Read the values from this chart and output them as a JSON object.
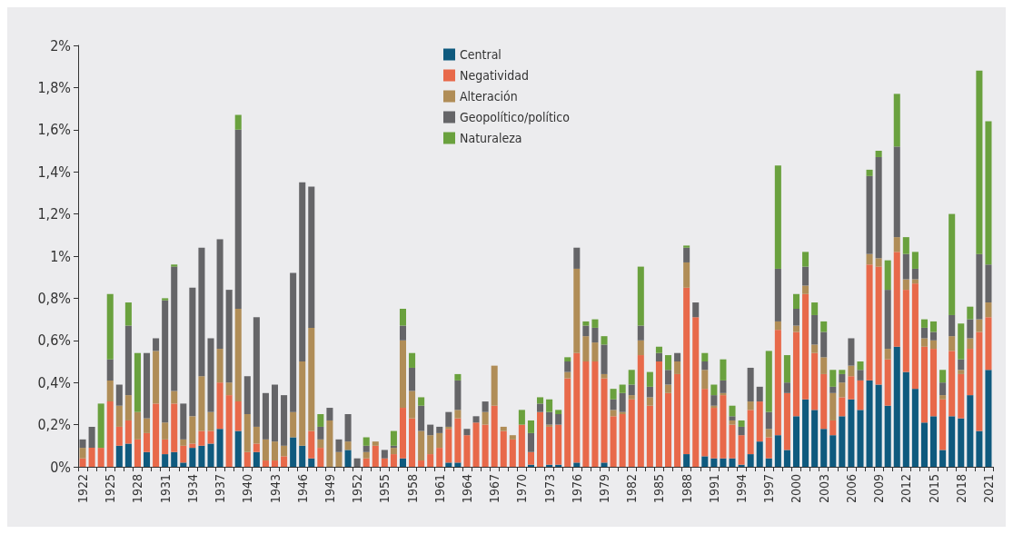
{
  "chart_data": {
    "type": "bar",
    "stacked": true,
    "legend": "top",
    "categories": [
      "1922",
      null,
      null,
      "1925",
      null,
      null,
      "1928",
      null,
      null,
      "1931",
      null,
      null,
      "1934",
      null,
      null,
      "1937",
      null,
      null,
      "1940",
      null,
      null,
      "1943",
      null,
      null,
      "1946",
      null,
      null,
      "1949",
      null,
      null,
      "1952",
      null,
      null,
      "1955",
      null,
      null,
      "1958",
      null,
      null,
      "1961",
      null,
      null,
      "1964",
      null,
      null,
      "1967",
      null,
      null,
      "1970",
      null,
      null,
      "1973",
      null,
      null,
      "1976",
      null,
      null,
      "1979",
      null,
      null,
      "1982",
      null,
      null,
      "1985",
      null,
      null,
      "1988",
      null,
      null,
      "1991",
      null,
      null,
      "1994",
      null,
      null,
      "1997",
      null,
      null,
      "2000",
      null,
      null,
      "2003",
      null,
      null,
      "2006",
      null,
      null,
      "2009",
      null,
      null,
      "2012",
      null,
      null,
      "2015",
      null,
      null,
      "2018",
      null,
      null,
      "2021"
    ],
    "ylim": [
      0,
      2
    ],
    "yticks": [
      {
        "value": 0,
        "label": "0%"
      },
      {
        "value": 0.2,
        "label": "0,2%"
      },
      {
        "value": 0.4,
        "label": "0,4%"
      },
      {
        "value": 0.6,
        "label": "0,6%"
      },
      {
        "value": 0.8,
        "label": "0,8%"
      },
      {
        "value": 1,
        "label": "1%"
      },
      {
        "value": 1.2,
        "label": "1,2%"
      },
      {
        "value": 1.4,
        "label": "1,4%"
      },
      {
        "value": 1.6,
        "label": "1,6%"
      },
      {
        "value": 1.8,
        "label": "1,8%"
      },
      {
        "value": 2,
        "label": "2%"
      }
    ],
    "series": [
      {
        "name": "Central",
        "color": "#0f5a7e",
        "values": [
          0,
          0,
          0,
          0,
          0.1,
          0.11,
          0,
          0.07,
          0,
          0.06,
          0.07,
          0.02,
          0.09,
          0.1,
          0.11,
          0.18,
          0,
          0.17,
          0,
          0.07,
          0,
          0,
          0,
          0.14,
          0.1,
          0.04,
          0,
          0,
          0,
          0.08,
          0,
          0,
          0,
          0,
          0,
          0.04,
          0,
          0,
          0,
          0,
          0.02,
          0.02,
          0,
          0,
          0,
          0,
          0,
          0,
          0,
          0.01,
          0,
          0.01,
          0.01,
          0,
          0.02,
          0,
          0,
          0.02,
          0,
          0,
          0,
          0,
          0,
          0,
          0,
          0,
          0.06,
          0,
          0.05,
          0.04,
          0.04,
          0.04,
          0.01,
          0.06,
          0.12,
          0.04,
          0.15,
          0.08,
          0.24,
          0.32,
          0.27,
          0.18,
          0.15,
          0.24,
          0.32,
          0.27,
          0.41,
          0.39,
          0.29,
          0.57,
          0.45,
          0.37,
          0.21,
          0.24,
          0.08,
          0.24,
          0.23,
          0.34,
          0.17,
          0.46
        ]
      },
      {
        "name": "Negatividad",
        "color": "#e8694a",
        "values": [
          0.04,
          0.09,
          0.09,
          0.31,
          0.09,
          0.11,
          0.13,
          0.09,
          0.3,
          0.07,
          0.23,
          0.08,
          0.02,
          0.07,
          0.06,
          0.22,
          0.34,
          0.14,
          0.07,
          0.04,
          0.03,
          0.03,
          0.05,
          0,
          0,
          0.13,
          0.09,
          0,
          0,
          0,
          0,
          0.04,
          0.1,
          0.04,
          0.06,
          0.24,
          0.23,
          0.03,
          0.06,
          0.09,
          0.16,
          0.21,
          0.15,
          0.21,
          0.2,
          0.29,
          0.17,
          0.13,
          0.2,
          0.06,
          0.26,
          0.18,
          0.19,
          0.42,
          0.52,
          0.5,
          0.5,
          0.4,
          0.24,
          0.25,
          0.32,
          0.53,
          0.29,
          0.5,
          0.35,
          0.44,
          0.79,
          0.71,
          0.32,
          0.24,
          0.3,
          0.16,
          0.14,
          0.21,
          0.19,
          0.1,
          0.5,
          0.27,
          0.4,
          0.5,
          0.27,
          0.26,
          0.07,
          0.09,
          0.11,
          0.14,
          0.55,
          0.56,
          0.22,
          0.45,
          0.39,
          0.5,
          0.36,
          0.32,
          0.24,
          0.31,
          0.21,
          0.22,
          0.47,
          0.25
        ]
      },
      {
        "name": "Alteración",
        "color": "#b08d57",
        "values": [
          0.05,
          0,
          0,
          0.1,
          0.1,
          0.12,
          0.13,
          0.07,
          0.25,
          0.08,
          0.06,
          0.03,
          0.13,
          0.26,
          0.09,
          0.16,
          0.06,
          0.44,
          0.18,
          0.08,
          0.1,
          0.09,
          0.05,
          0.12,
          0.4,
          0.49,
          0.04,
          0.22,
          0.07,
          0.04,
          0,
          0.03,
          0.02,
          0,
          0.03,
          0.32,
          0.13,
          0.14,
          0.09,
          0.07,
          0.01,
          0.04,
          0,
          0,
          0.06,
          0.19,
          0.02,
          0.02,
          0,
          0,
          0,
          0.01,
          0,
          0.03,
          0.4,
          0.12,
          0.09,
          0.02,
          0.03,
          0.01,
          0.02,
          0.07,
          0.04,
          0,
          0.04,
          0.06,
          0.12,
          0,
          0.09,
          0.01,
          0.01,
          0.02,
          0,
          0.04,
          0,
          0.04,
          0.04,
          0,
          0.03,
          0.04,
          0.04,
          0.08,
          0.13,
          0.07,
          0.05,
          0,
          0.05,
          0.04,
          0.05,
          0.07,
          0.05,
          0.02,
          0.04,
          0.04,
          0.02,
          0.07,
          0.02,
          0.05,
          0.06,
          0.07
        ]
      },
      {
        "name": "Geopolítico/político",
        "color": "#656568",
        "values": [
          0.04,
          0.1,
          0,
          0.1,
          0.1,
          0.33,
          0,
          0.31,
          0.06,
          0.58,
          0.59,
          0.17,
          0.61,
          0.61,
          0.35,
          0.52,
          0.44,
          0.85,
          0.18,
          0.52,
          0.22,
          0.27,
          0.24,
          0.66,
          0.85,
          0.67,
          0.06,
          0.06,
          0.06,
          0.13,
          0.04,
          0.03,
          0,
          0.04,
          0.01,
          0.07,
          0.11,
          0.12,
          0.05,
          0.03,
          0.07,
          0.14,
          0.03,
          0.03,
          0.05,
          0,
          0,
          0,
          0,
          0.09,
          0.04,
          0.06,
          0.05,
          0.05,
          0.1,
          0.05,
          0.07,
          0.14,
          0.05,
          0.09,
          0.05,
          0.07,
          0.05,
          0.04,
          0.07,
          0.04,
          0.07,
          0.07,
          0.04,
          0.05,
          0.06,
          0.02,
          0.04,
          0.16,
          0.07,
          0.08,
          0.25,
          0.05,
          0.08,
          0.09,
          0.14,
          0.12,
          0.03,
          0.04,
          0.13,
          0.05,
          0.37,
          0.48,
          0.28,
          0.43,
          0.12,
          0.05,
          0.05,
          0.04,
          0.06,
          0.1,
          0.05,
          0.09,
          0.31,
          0.18
        ]
      },
      {
        "name": "Naturaleza",
        "color": "#6aa13e",
        "values": [
          0,
          0,
          0.21,
          0.31,
          0,
          0.11,
          0.28,
          0,
          0,
          0.01,
          0.01,
          0,
          0,
          0,
          0,
          0,
          0,
          0.07,
          0,
          0,
          0,
          0,
          0,
          0,
          0,
          0,
          0.06,
          0,
          0,
          0,
          0,
          0.04,
          0,
          0,
          0.07,
          0.08,
          0.07,
          0.04,
          0,
          0,
          0,
          0.03,
          0,
          0,
          0,
          0,
          0,
          0,
          0.07,
          0.06,
          0.03,
          0.06,
          0.02,
          0.02,
          0,
          0.02,
          0.04,
          0.04,
          0.05,
          0.04,
          0.07,
          0.28,
          0.07,
          0.03,
          0.07,
          0,
          0.01,
          0,
          0.04,
          0.05,
          0.1,
          0.05,
          0.03,
          0,
          0,
          0.29,
          0.49,
          0.13,
          0.07,
          0.07,
          0.06,
          0.05,
          0.08,
          0.02,
          0,
          0.04,
          0.03,
          0.03,
          0.14,
          0.25,
          0.08,
          0.08,
          0.04,
          0.05,
          0.06,
          0.48,
          0.17,
          0.06,
          0.87,
          0.68
        ]
      }
    ]
  }
}
